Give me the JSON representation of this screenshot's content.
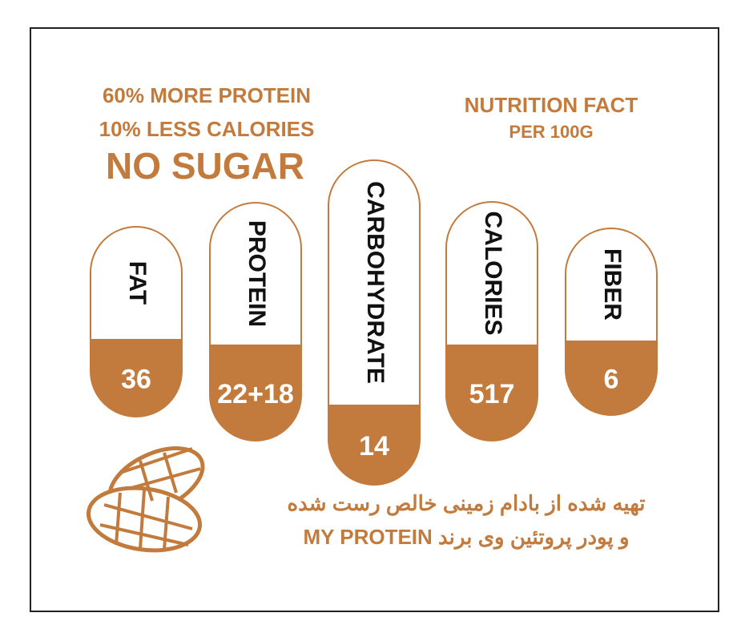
{
  "claims": {
    "line1": "60% MORE PROTEIN",
    "line2": "10% LESS CALORIES",
    "line3": "NO SUGAR"
  },
  "heading": {
    "title": "NUTRITION FACT",
    "subtitle": "PER 100G"
  },
  "pills": [
    {
      "label": "FAT",
      "value": "36"
    },
    {
      "label": "PROTEIN",
      "value": "22+18"
    },
    {
      "label": "CARBOHYDRATE",
      "value": "14"
    },
    {
      "label": "CALORIES",
      "value": "517"
    },
    {
      "label": "FIBER",
      "value": "6"
    }
  ],
  "footer": {
    "line1": "تهیه شده از بادام زمینی خالص رست شده",
    "line2": "و پودر پروتئین وی برند MY PROTEIN"
  }
}
